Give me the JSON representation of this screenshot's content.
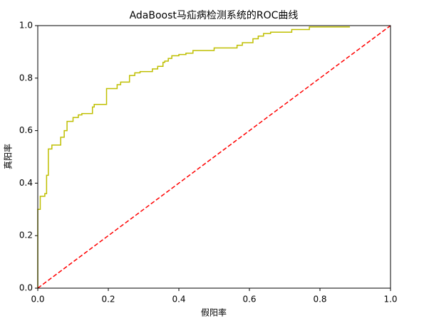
{
  "chart_data": {
    "type": "line",
    "title": "AdaBoost马疝病检测系统的ROC曲线",
    "xlabel": "假阳率",
    "ylabel": "真阳率",
    "xlim": [
      0,
      1
    ],
    "ylim": [
      0,
      1
    ],
    "xticks": [
      {
        "value": 0,
        "label": "0.0"
      },
      0.2,
      0.4,
      0.6,
      0.8,
      {
        "value": 1,
        "label": "1.0"
      }
    ],
    "yticks": [
      {
        "value": 0,
        "label": "0.0"
      },
      0.2,
      0.4,
      0.6,
      0.8,
      {
        "value": 1,
        "label": "1.0"
      }
    ],
    "grid": false,
    "series": [
      {
        "color": "#bfbf00",
        "style": "solid",
        "x": [
          0,
          0,
          0.007,
          0.007,
          0.02,
          0.02,
          0.025,
          0.025,
          0.03,
          0.03,
          0.04,
          0.04,
          0.065,
          0.065,
          0.075,
          0.075,
          0.083,
          0.083,
          0.1,
          0.1,
          0.115,
          0.115,
          0.125,
          0.125,
          0.155,
          0.155,
          0.16,
          0.16,
          0.195,
          0.195,
          0.225,
          0.225,
          0.235,
          0.235,
          0.26,
          0.26,
          0.275,
          0.275,
          0.29,
          0.29,
          0.325,
          0.325,
          0.34,
          0.34,
          0.355,
          0.355,
          0.36,
          0.36,
          0.37,
          0.37,
          0.38,
          0.38,
          0.4,
          0.4,
          0.42,
          0.42,
          0.44,
          0.44,
          0.5,
          0.5,
          0.565,
          0.565,
          0.58,
          0.58,
          0.61,
          0.61,
          0.625,
          0.625,
          0.64,
          0.64,
          0.66,
          0.66,
          0.72,
          0.72,
          0.77,
          0.77,
          0.885
        ],
        "values": [
          0,
          0.3,
          0.3,
          0.35,
          0.35,
          0.36,
          0.36,
          0.43,
          0.43,
          0.53,
          0.53,
          0.545,
          0.545,
          0.575,
          0.575,
          0.6,
          0.6,
          0.635,
          0.635,
          0.65,
          0.65,
          0.66,
          0.66,
          0.665,
          0.665,
          0.69,
          0.69,
          0.7,
          0.7,
          0.76,
          0.76,
          0.775,
          0.775,
          0.785,
          0.785,
          0.81,
          0.81,
          0.82,
          0.82,
          0.825,
          0.825,
          0.835,
          0.835,
          0.845,
          0.845,
          0.86,
          0.86,
          0.865,
          0.865,
          0.875,
          0.875,
          0.885,
          0.885,
          0.89,
          0.89,
          0.895,
          0.895,
          0.905,
          0.905,
          0.915,
          0.915,
          0.925,
          0.925,
          0.935,
          0.935,
          0.95,
          0.95,
          0.96,
          0.96,
          0.97,
          0.97,
          0.975,
          0.975,
          0.985,
          0.985,
          0.995,
          0.995
        ]
      },
      {
        "color": "#ff0000",
        "style": "dashed",
        "x": [
          0,
          1
        ],
        "values": [
          0,
          1
        ]
      }
    ]
  }
}
